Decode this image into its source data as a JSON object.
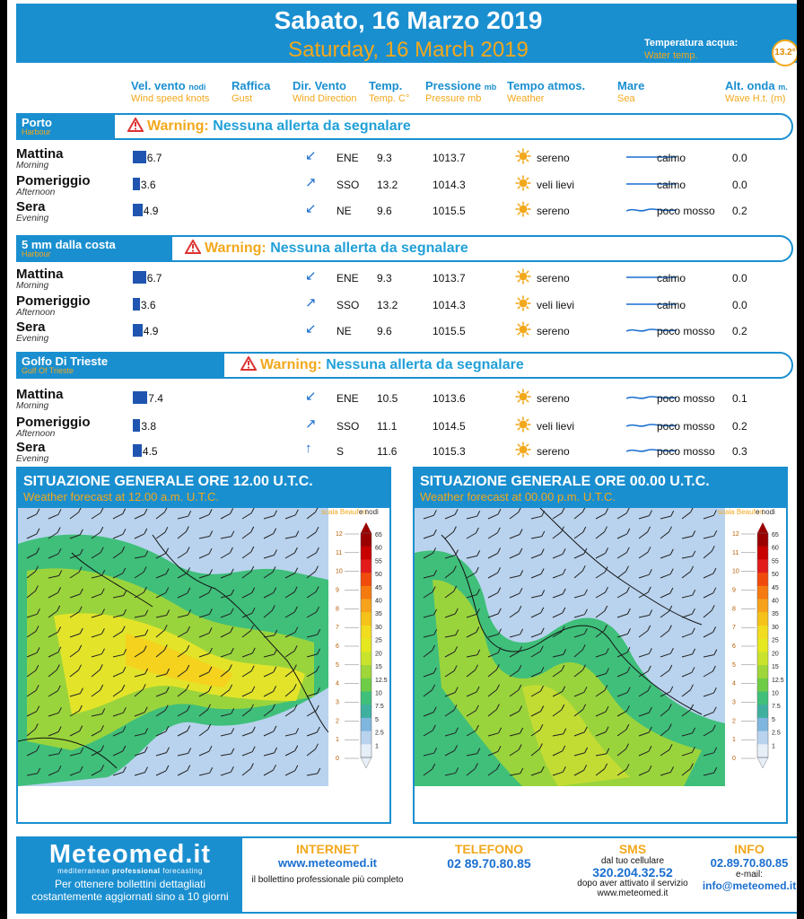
{
  "header": {
    "title_it": "Sabato, 16 Marzo 2019",
    "title_en": "Saturday, 16 March 2019",
    "water_temp_label_it": "Temperatura acqua:",
    "water_temp_label_en": "Water temp.",
    "water_temp_value": "13.2°"
  },
  "columns": [
    {
      "it": "Vel. vento",
      "it_small": "nodi",
      "en": "Wind speed knots"
    },
    {
      "it": "Raffica",
      "it_small": "",
      "en": "Gust"
    },
    {
      "it": "Dir. Vento",
      "it_small": "",
      "en": "Wind Direction"
    },
    {
      "it": "Temp.",
      "it_small": "",
      "en": "Temp. C°"
    },
    {
      "it": "Pressione",
      "it_small": "mb",
      "en": "Pressure mb"
    },
    {
      "it": "Tempo atmos.",
      "it_small": "",
      "en": "Weather"
    },
    {
      "it": "Mare",
      "it_small": "",
      "en": "Sea"
    },
    {
      "it": "Alt. onda",
      "it_small": "m.",
      "en": "Wave H.t. (m)"
    }
  ],
  "sections": [
    {
      "name": "Porto",
      "name_en": "Harbour",
      "warning_label": "Warning:",
      "warning_text": "Nessuna allerta da segnalare",
      "rows": [
        {
          "period": "Mattina",
          "period_en": "Morning",
          "wind": "6.7",
          "wind_level": 6.7,
          "dir_arrow": "↙",
          "dir": "ENE",
          "temp": "9.3",
          "pressure": "1013.7",
          "weather": "sereno",
          "sea": "calmo",
          "wave": "0.0"
        },
        {
          "period": "Pomeriggio",
          "period_en": "Afternoon",
          "wind": "3.6",
          "wind_level": 3.6,
          "dir_arrow": "↗",
          "dir": "SSO",
          "temp": "13.2",
          "pressure": "1014.3",
          "weather": "veli lievi",
          "sea": "calmo",
          "wave": "0.0"
        },
        {
          "period": "Sera",
          "period_en": "Evening",
          "wind": "4.9",
          "wind_level": 4.9,
          "dir_arrow": "↙",
          "dir": "NE",
          "temp": "9.6",
          "pressure": "1015.5",
          "weather": "sereno",
          "sea": "poco mosso",
          "wave": "0.2"
        }
      ]
    },
    {
      "name": "5 mm dalla costa",
      "name_en": "Harbour",
      "warning_label": "Warning:",
      "warning_text": "Nessuna allerta da segnalare",
      "rows": [
        {
          "period": "Mattina",
          "period_en": "Morning",
          "wind": "6.7",
          "wind_level": 6.7,
          "dir_arrow": "↙",
          "dir": "ENE",
          "temp": "9.3",
          "pressure": "1013.7",
          "weather": "sereno",
          "sea": "calmo",
          "wave": "0.0"
        },
        {
          "period": "Pomeriggio",
          "period_en": "Afternoon",
          "wind": "3.6",
          "wind_level": 3.6,
          "dir_arrow": "↗",
          "dir": "SSO",
          "temp": "13.2",
          "pressure": "1014.3",
          "weather": "veli lievi",
          "sea": "calmo",
          "wave": "0.0"
        },
        {
          "period": "Sera",
          "period_en": "Evening",
          "wind": "4.9",
          "wind_level": 4.9,
          "dir_arrow": "↙",
          "dir": "NE",
          "temp": "9.6",
          "pressure": "1015.5",
          "weather": "sereno",
          "sea": "poco mosso",
          "wave": "0.2"
        }
      ]
    },
    {
      "name": "Golfo Di Trieste",
      "name_en": "Gulf Of Trieste",
      "warning_label": "Warning:",
      "warning_text": "Nessuna allerta da segnalare",
      "rows": [
        {
          "period": "Mattina",
          "period_en": "Morning",
          "wind": "7.4",
          "wind_level": 7.4,
          "dir_arrow": "↙",
          "dir": "ENE",
          "temp": "10.5",
          "pressure": "1013.6",
          "weather": "sereno",
          "sea": "poco mosso",
          "wave": "0.1"
        },
        {
          "period": "Pomeriggio",
          "period_en": "Afternoon",
          "wind": "3.8",
          "wind_level": 3.8,
          "dir_arrow": "↗",
          "dir": "SSO",
          "temp": "11.1",
          "pressure": "1014.5",
          "weather": "veli lievi",
          "sea": "poco mosso",
          "wave": "0.2"
        },
        {
          "period": "Sera",
          "period_en": "Evening",
          "wind": "4.5",
          "wind_level": 4.5,
          "dir_arrow": "↑",
          "dir": "S",
          "temp": "11.6",
          "pressure": "1015.3",
          "weather": "sereno",
          "sea": "poco mosso",
          "wave": "0.3"
        }
      ]
    }
  ],
  "maps": [
    {
      "title": "SITUAZIONE GENERALE ORE 12.00 U.T.C.",
      "subtitle": "Weather forecast at 12.00 a.m. U.T.C.",
      "scale_beaufort": "scala Beaufort",
      "scale_knots": "e nodi"
    },
    {
      "title": "SITUAZIONE GENERALE ORE 00.00 U.T.C.",
      "subtitle": "Weather forecast at 00.00 p.m. U.T.C.",
      "scale_beaufort": "scala Beaufort",
      "scale_knots": "e nodi"
    }
  ],
  "legend": {
    "beaufort": [
      "12",
      "11",
      "10",
      "9",
      "8",
      "7",
      "6",
      "5",
      "4",
      "3",
      "2",
      "1",
      "0"
    ],
    "knots": [
      "65",
      "60",
      "55",
      "50",
      "45",
      "40",
      "35",
      "30",
      "25",
      "20",
      "15",
      "12.5",
      "10",
      "7.5",
      "5",
      "2.5",
      "1"
    ]
  },
  "footer": {
    "brand": "Meteomed",
    "brand_suffix": ".it",
    "tagline_pre": "mediterranean ",
    "tagline_bold": "professional",
    "tagline_post": " forecasting",
    "cta_line1": "Per ottenere bollettini dettagliati",
    "cta_line2": "costantemente aggiornati sino a 10 giorni",
    "internet_h": "INTERNET",
    "internet_url": "www.meteomed.it",
    "internet_note": "il bollettino professionale più completo",
    "tel_h": "TELEFONO",
    "tel_num": "02 89.70.80.85",
    "sms_h": "SMS",
    "sms_note1": "dal tuo cellulare",
    "sms_num": "320.204.32.52",
    "sms_note2": "dopo aver attivato il servizio",
    "sms_url": "www.meteomed.it",
    "info_h": "INFO",
    "info_num": "02.89.70.80.85",
    "info_email_label": "e-mail:",
    "info_email": "info@meteomed.it"
  },
  "colors": {
    "primary": "#1a8fd0",
    "accent": "#f2a81c",
    "bar": "#1f55b0"
  }
}
